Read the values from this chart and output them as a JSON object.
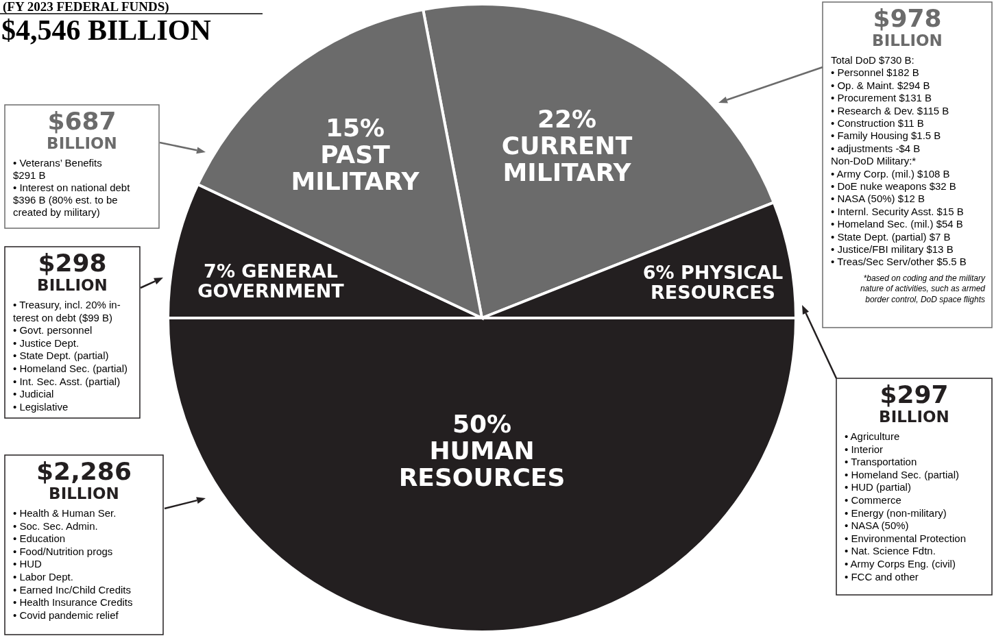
{
  "chart_data": {
    "type": "pie",
    "title": "(FY 2023 FEDERAL FUNDS)",
    "subtitle": "$4,546 BILLION",
    "categories": [
      "CURRENT\nMILITARY",
      "PHYSICAL\nRESOURCES",
      "HUMAN\nRESOURCES",
      "GENERAL\nGOVERNMENT",
      "PAST\nMILITARY"
    ],
    "values": [
      22,
      6,
      50,
      7,
      15
    ],
    "value_labels": [
      "22%",
      "6%",
      "50%",
      "7%",
      "15%"
    ],
    "colors": [
      "#6b6b6b",
      "#231f20",
      "#231f20",
      "#231f20",
      "#6b6b6b"
    ],
    "annotations": [
      "$687\nBILLION\n• Veterans’ Benefits\n$291 B\n• Interest on national debt\n$396 B (80% est. to be\ncreated by military)",
      "$298\nBILLION\n• Treasury, incl. 20% in-\nterest on debt ($99 B)\n• Govt. personnel\n• Justice Dept.\n• State Dept. (partial)\n• Homeland Sec. (partial)\n• Int. Sec. Asst. (partial)\n• Judicial\n• Legislative",
      "$2,286\nBILLION\n• Health & Human Ser.\n• Soc. Sec. Admin.\n• Education\n• Food/Nutrition progs\n• HUD\n• Labor Dept.\n• Earned Inc/Child Credits\n• Health Insurance Credits\n• Covid pandemic relief",
      "$978\nBILLION\nTotal DoD $730 B:\n• Personnel $182 B\n• Op. & Maint. $294 B\n• Procurement $131 B\n• Research & Dev. $115 B\n• Construction $11 B\n• Family Housing $1.5 B\n• adjustments -$4 B\nNon-DoD Military:*\n• Army Corp. (mil.) $108 B\n• DoE nuke weapons $32 B\n• NASA (50%) $12 B\n• Internl. Security Asst. $15 B\n• Homeland Sec. (mil.) $54 B\n• State Dept. (partial) $7 B\n• Justice/FBI military $13 B\n• Treas/Sec Serv/other $5.5 B\n*based on coding and the military\nnature of activities, such as armed\nborder control, DoD space flights",
      "$297\nBILLION\n• Agriculture\n• Interior\n• Transportation\n• Homeland Sec. (partial)\n• HUD (partial)\n• Commerce\n• Energy (non-military)\n• NASA (50%)\n• Environmental Protection\n• Nat. Science Fdtn.\n• Army Corps Eng. (civil)\n• FCC and other"
    ]
  }
}
